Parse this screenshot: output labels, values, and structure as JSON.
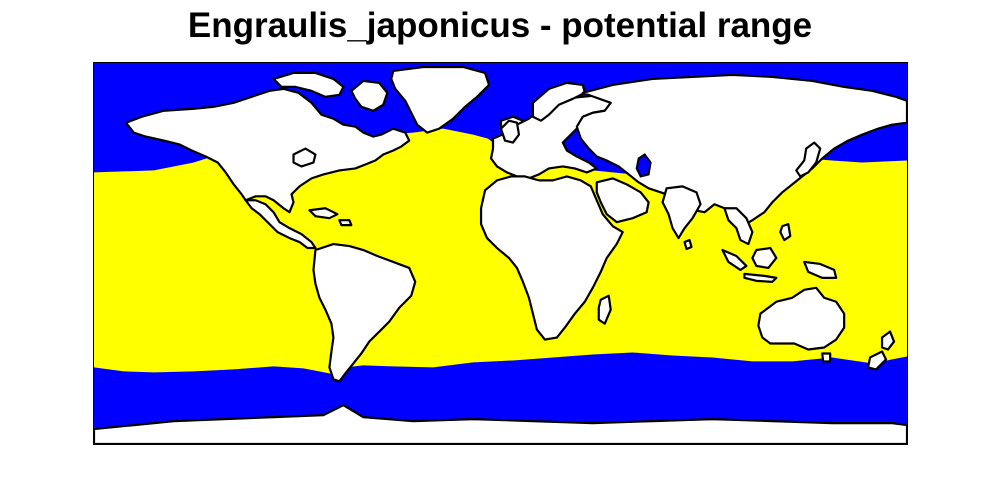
{
  "title": "Engraulis_japonicus - potential range",
  "colors": {
    "polar_ocean": "#0000ff",
    "potential_range": "#ffff00",
    "land": "#ffffff",
    "coastline": "#000000"
  }
}
